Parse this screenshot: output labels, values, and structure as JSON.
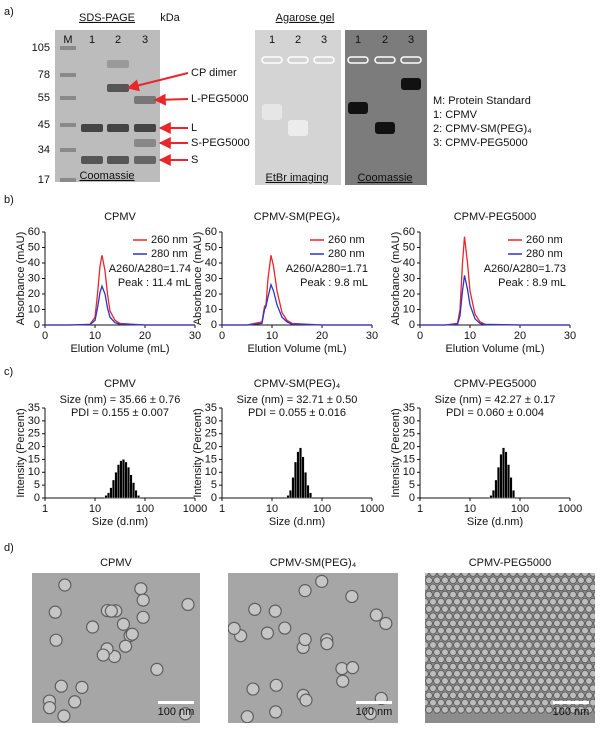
{
  "panel_labels": [
    "a)",
    "b)",
    "c)",
    "d)"
  ],
  "sds_page": {
    "title": "SDS-PAGE",
    "unit": "kDa",
    "lanes": [
      "M",
      "1",
      "2",
      "3"
    ],
    "markers": [
      "105",
      "78",
      "55",
      "45",
      "34",
      "17"
    ],
    "bands": [
      "CP dimer",
      "L-PEG5000",
      "L",
      "S-PEG5000",
      "S"
    ],
    "stain": "Coomassie"
  },
  "agarose_gel": {
    "title": "Agarose gel",
    "lanes": [
      "1",
      "2",
      "3",
      "1",
      "2",
      "3"
    ],
    "imaging": [
      "EtBr imaging",
      "Coomassie"
    ],
    "legend": [
      "M: Protein Standard",
      "1: CPMV",
      "2: CPMV-SM(PEG)₄",
      "3: CPMV-PEG5000"
    ]
  },
  "chart_data": [
    {
      "type": "line",
      "title": "CPMV",
      "xlabel": "Elution Volume (mL)",
      "ylabel": "Absorbance (mAU)",
      "xlim": [
        0,
        30
      ],
      "xticks": [
        0,
        10,
        20,
        30
      ],
      "ylim": [
        0,
        60
      ],
      "yticks": [
        0,
        10,
        20,
        30,
        40,
        50,
        60
      ],
      "legend": "upper right",
      "annotations": [
        "A260/A280=1.74",
        "Peak : 11.4 mL"
      ],
      "x": [
        0,
        5,
        9,
        10,
        10.5,
        11,
        11.4,
        12,
        12.5,
        13,
        14,
        15,
        20,
        30
      ],
      "series": [
        {
          "name": "260 nm",
          "color": "#e8262b",
          "values": [
            0,
            0,
            0.5,
            5,
            20,
            38,
            45,
            35,
            20,
            9,
            3,
            1,
            0,
            0
          ]
        },
        {
          "name": "280 nm",
          "color": "#2b35c8",
          "values": [
            0,
            0,
            0.3,
            3,
            11,
            21,
            25,
            20,
            11,
            5,
            1.5,
            0.5,
            0,
            0
          ]
        }
      ]
    },
    {
      "type": "line",
      "title": "CPMV-SM(PEG)₄",
      "xlabel": "Elution Volume (mL)",
      "ylabel": "Absorbance (mAU)",
      "xlim": [
        0,
        30
      ],
      "xticks": [
        0,
        10,
        20,
        30
      ],
      "ylim": [
        0,
        60
      ],
      "yticks": [
        0,
        10,
        20,
        30,
        40,
        50,
        60
      ],
      "legend": "upper right",
      "annotations": [
        "A260/A280=1.71",
        "Peak : 9.8 mL"
      ],
      "x": [
        0,
        5,
        8,
        8.5,
        8.8,
        9.2,
        9.8,
        10.3,
        11,
        12,
        13,
        14,
        20,
        30
      ],
      "series": [
        {
          "name": "260 nm",
          "color": "#e8262b",
          "values": [
            0,
            0,
            2,
            12,
            13,
            30,
            45,
            38,
            22,
            8,
            3,
            1,
            0,
            0
          ]
        },
        {
          "name": "280 nm",
          "color": "#2b35c8",
          "values": [
            0,
            0,
            1,
            10,
            12,
            18,
            26,
            22,
            13,
            5,
            2,
            0.5,
            0,
            0
          ]
        }
      ]
    },
    {
      "type": "line",
      "title": "CPMV-PEG5000",
      "xlabel": "Elution Volume (mL)",
      "ylabel": "Absorbance (mAU)",
      "xlim": [
        0,
        30
      ],
      "xticks": [
        0,
        10,
        20,
        30
      ],
      "ylim": [
        0,
        60
      ],
      "yticks": [
        0,
        10,
        20,
        30,
        40,
        50,
        60
      ],
      "legend": "upper right",
      "annotations": [
        "A260/A280=1.73",
        "Peak : 8.9 mL"
      ],
      "x": [
        0,
        5,
        7.5,
        8,
        8.5,
        8.9,
        9.5,
        10,
        11,
        12,
        13,
        20,
        30
      ],
      "series": [
        {
          "name": "260 nm",
          "color": "#e8262b",
          "values": [
            0,
            0,
            1,
            10,
            40,
            57,
            40,
            22,
            7,
            2,
            0.5,
            0,
            0
          ]
        },
        {
          "name": "280 nm",
          "color": "#2b35c8",
          "values": [
            0,
            0,
            0.5,
            6,
            22,
            32,
            23,
            13,
            4,
            1,
            0.3,
            0,
            0
          ]
        }
      ]
    },
    {
      "type": "histogram",
      "title": "CPMV",
      "xlabel": "Size (d.nm)",
      "ylabel": "Intensity (Percent)",
      "xscale": "log",
      "xlim": [
        1,
        1000
      ],
      "xticks": [
        1,
        10,
        100,
        1000
      ],
      "ylim": [
        0,
        35
      ],
      "yticks": [
        0,
        5,
        10,
        15,
        20,
        25,
        30,
        35
      ],
      "color": "#000000",
      "annotations": [
        "Size (nm) = 35.66 ± 0.76",
        "PDI = 0.155 ± 0.007"
      ],
      "bins": [
        15.7,
        17.6,
        19.7,
        22.1,
        24.8,
        27.8,
        31.2,
        35.0,
        39.3,
        44.1,
        49.5,
        55.5,
        62.3,
        69.9,
        78.4
      ],
      "counts": [
        1,
        2,
        4,
        7,
        10,
        13,
        14.5,
        15,
        14,
        12,
        9,
        6,
        3,
        1
      ]
    },
    {
      "type": "histogram",
      "title": "CPMV-SM(PEG)₄",
      "xlabel": "Size (d.nm)",
      "ylabel": "Intensity (Percent)",
      "xscale": "log",
      "xlim": [
        1,
        1000
      ],
      "xticks": [
        1,
        10,
        100,
        1000
      ],
      "ylim": [
        0,
        35
      ],
      "yticks": [
        0,
        5,
        10,
        15,
        20,
        25,
        30,
        35
      ],
      "color": "#000000",
      "annotations": [
        "Size (nm) = 32.71 ± 0.50",
        "PDI = 0.055 ± 0.016"
      ],
      "bins": [
        19.7,
        22.1,
        24.8,
        27.8,
        31.2,
        35.0,
        39.3,
        44.1,
        49.5,
        55.5,
        62.3
      ],
      "counts": [
        1,
        3,
        8,
        14,
        18,
        19.5,
        16,
        10,
        5,
        2
      ]
    },
    {
      "type": "histogram",
      "title": "CPMV-PEG5000",
      "xlabel": "Size (d.nm)",
      "ylabel": "Intensity (Percent)",
      "xscale": "log",
      "xlim": [
        1,
        1000
      ],
      "xticks": [
        1,
        10,
        100,
        1000
      ],
      "ylim": [
        0,
        35
      ],
      "yticks": [
        0,
        5,
        10,
        15,
        20,
        25,
        30,
        35
      ],
      "color": "#000000",
      "annotations": [
        "Size (nm) = 42.27 ± 0.17",
        "PDI = 0.060 ± 0.004"
      ],
      "bins": [
        24.8,
        27.8,
        31.2,
        35.0,
        39.3,
        44.1,
        49.5,
        55.5,
        62.3,
        69.9,
        78.4
      ],
      "counts": [
        1,
        3,
        7,
        12,
        17,
        19.5,
        18,
        13,
        8,
        3
      ]
    }
  ],
  "tem": {
    "titles": [
      "CPMV",
      "CPMV-SM(PEG)₄",
      "CPMV-PEG5000"
    ],
    "scale_bar": "100 nm"
  }
}
